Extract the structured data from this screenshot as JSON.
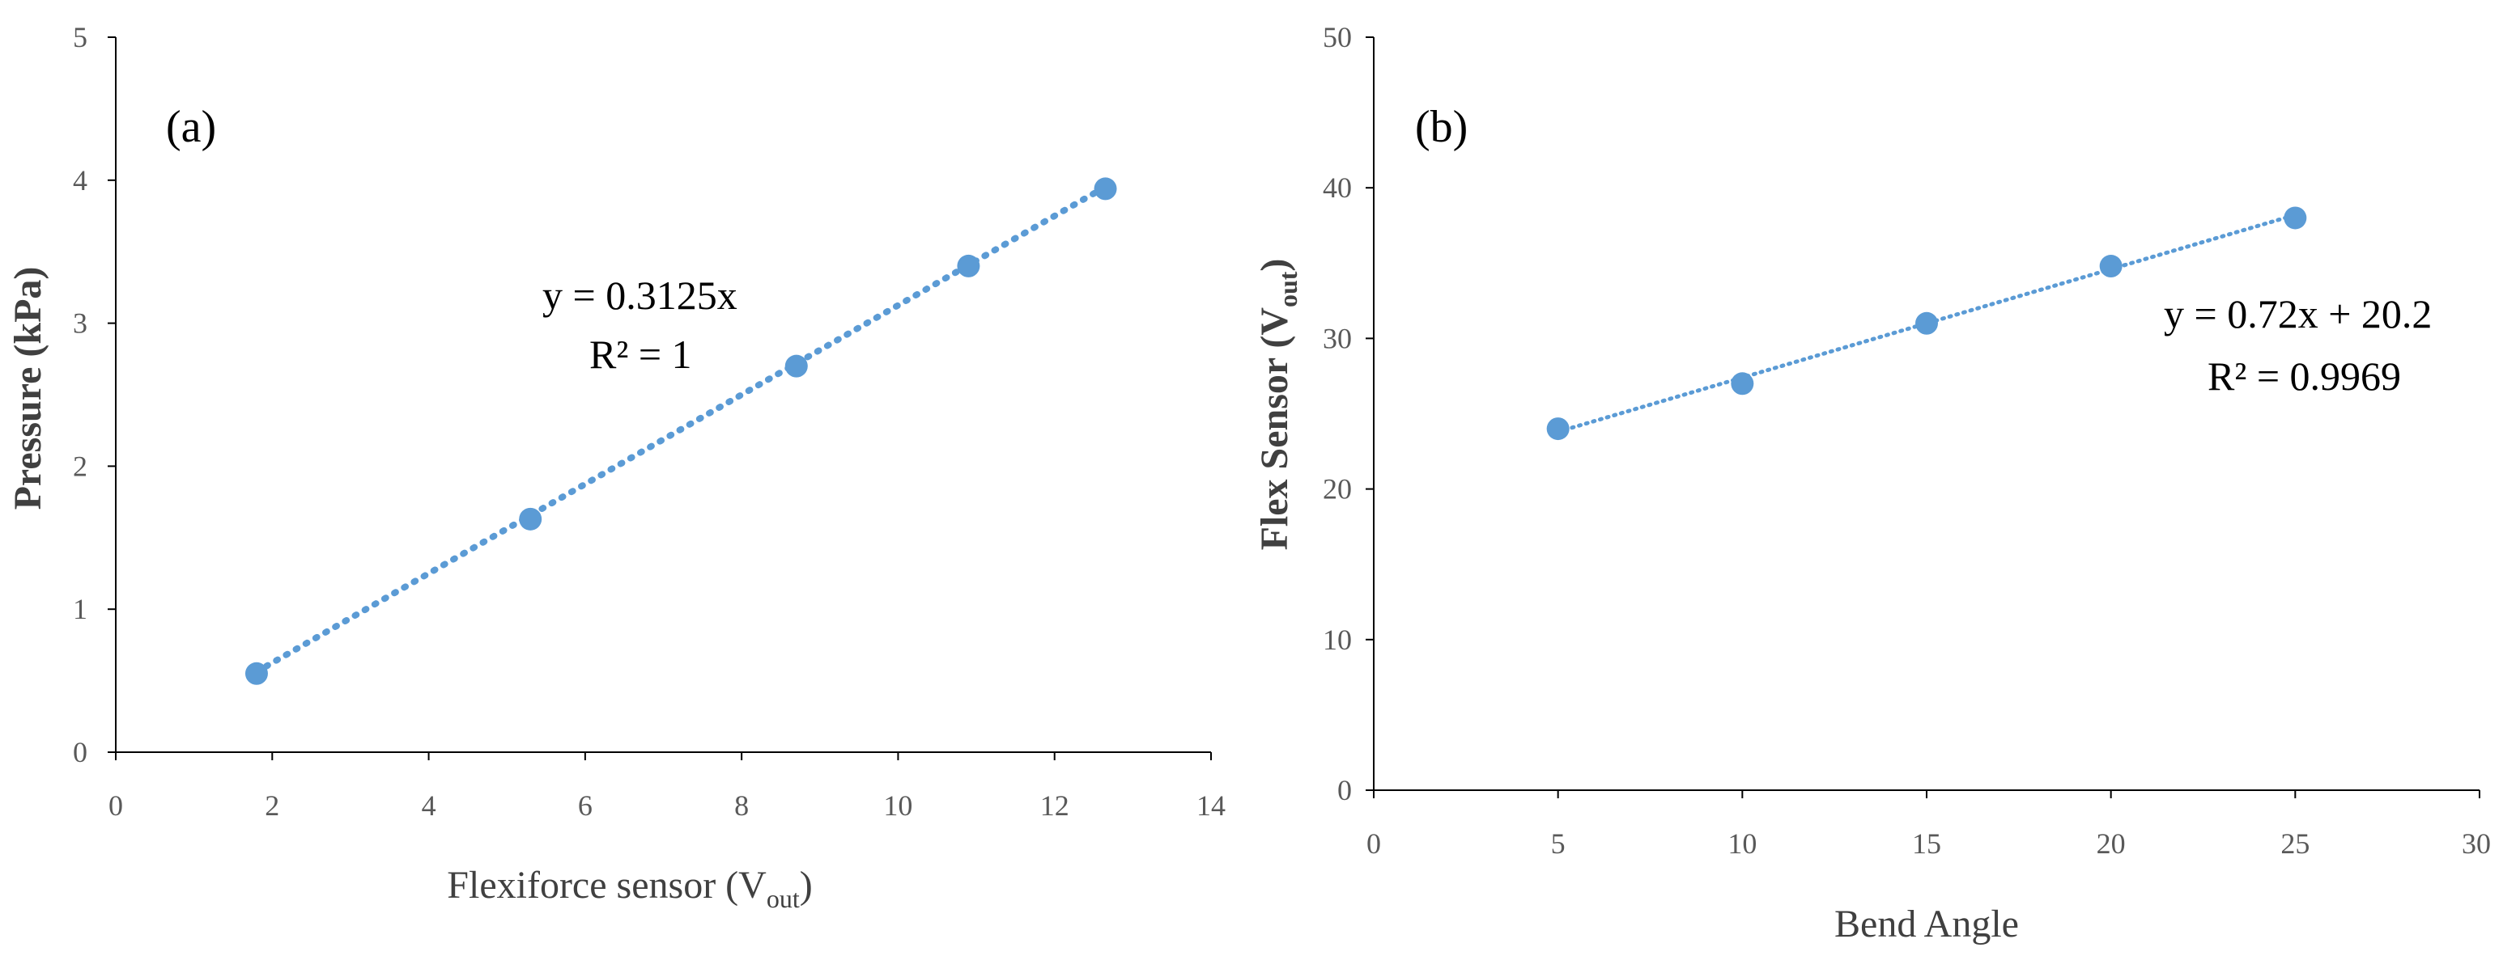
{
  "chart_data": [
    {
      "type": "scatter",
      "panel_label": "(a)",
      "x": [
        1.8,
        5.3,
        8.7,
        10.9,
        12.65
      ],
      "y": [
        0.55,
        1.63,
        2.7,
        3.4,
        3.94
      ],
      "xlabel_main": "Flexiforce sensor (V",
      "xlabel_sub": "out",
      "xlabel_end": ")",
      "ylabel": "Pressure (kPa)",
      "xlim": [
        0,
        14
      ],
      "ylim": [
        0,
        5
      ],
      "xticks": [
        "0",
        "2",
        "4",
        "6",
        "8",
        "10",
        "12",
        "14"
      ],
      "yticks": [
        "0",
        "1",
        "2",
        "3",
        "4",
        "5"
      ],
      "trendline": {
        "slope": 0.3125,
        "intercept": 0,
        "x_start": 1.8,
        "x_end": 12.65
      },
      "equation": "y = 0.3125x",
      "r2": "R² = 1",
      "marker_color": "#5B9BD5",
      "trend_color": "#5B9BD5"
    },
    {
      "type": "scatter",
      "panel_label": "(b)",
      "x": [
        5,
        10,
        15,
        20,
        25
      ],
      "y": [
        24,
        27,
        31,
        34.8,
        38
      ],
      "xlabel": "Bend Angle",
      "ylabel_main": "Flex Sensor (V",
      "ylabel_sub": "out",
      "ylabel_end": ")",
      "xlim": [
        0,
        30
      ],
      "ylim": [
        0,
        50
      ],
      "xticks": [
        "0",
        "5",
        "10",
        "15",
        "20",
        "25",
        "30"
      ],
      "yticks": [
        "0",
        "10",
        "20",
        "30",
        "40",
        "50"
      ],
      "trendline": {
        "slope": 0.72,
        "intercept": 20.2,
        "x_start": 5,
        "x_end": 25
      },
      "equation": "y = 0.72x + 20.2",
      "r2": "R² = 0.9969",
      "marker_color": "#5B9BD5",
      "trend_color": "#5B9BD5"
    }
  ]
}
